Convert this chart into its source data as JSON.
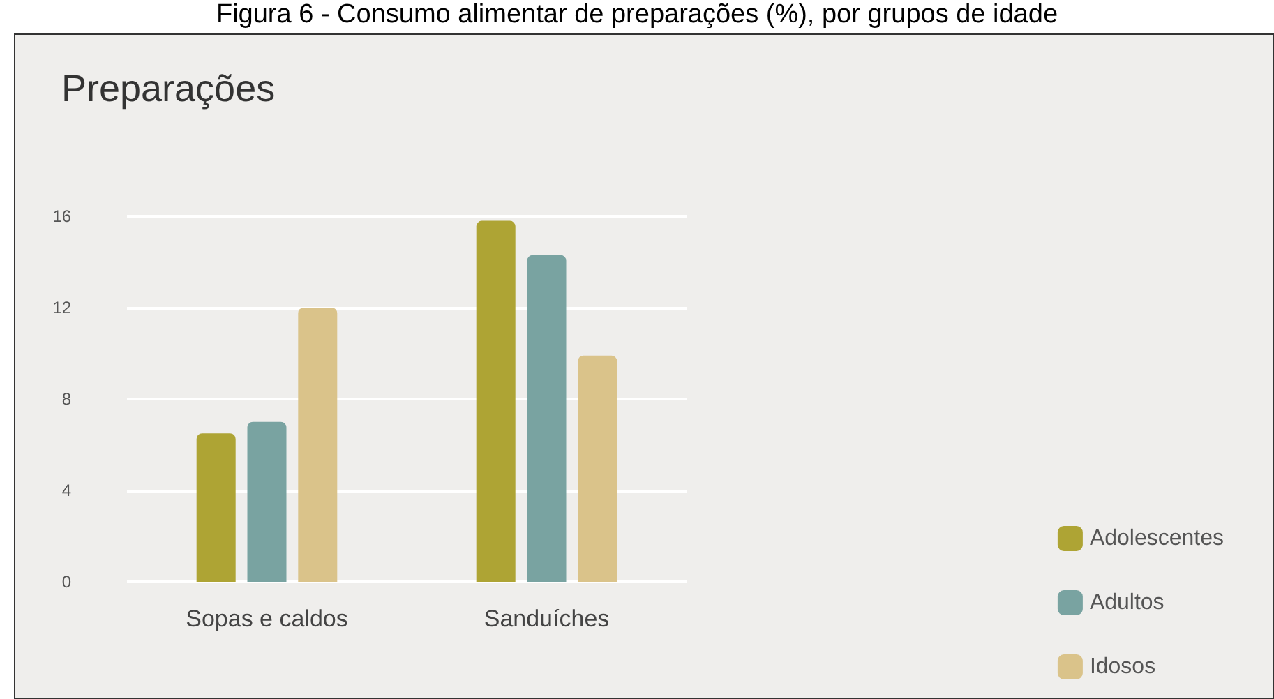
{
  "chart_data": {
    "type": "bar",
    "title": "Figura 6 - Consumo alimentar de preparações (%), por grupos de idade",
    "subtitle": "Preparações",
    "categories": [
      "Sopas e caldos",
      "Sanduíches"
    ],
    "series": [
      {
        "name": "Adolescentes",
        "color": "#aea434",
        "values": [
          6.5,
          15.8
        ]
      },
      {
        "name": "Adultos",
        "color": "#79a3a1",
        "values": [
          7.0,
          14.3
        ]
      },
      {
        "name": "Idosos",
        "color": "#dac38a",
        "values": [
          12.0,
          9.9
        ]
      }
    ],
    "ylim": [
      0,
      16
    ],
    "yticks": [
      0,
      4,
      8,
      12,
      16
    ],
    "grid": "y",
    "legend": "bottom right"
  }
}
